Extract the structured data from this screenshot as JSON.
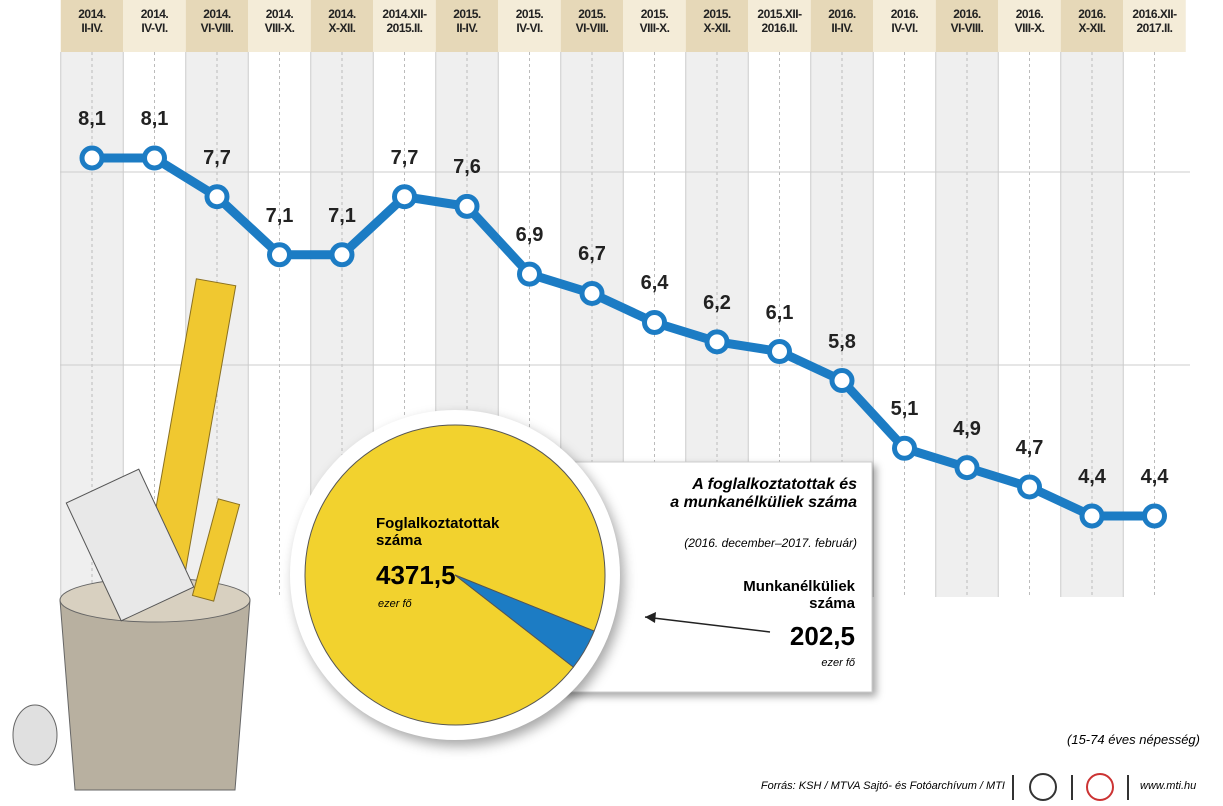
{
  "chart_data": [
    {
      "type": "line",
      "categories": [
        "2014.\nII-IV.",
        "2014.\nIV-VI.",
        "2014.\nVI-VIII.",
        "2014.\nVIII-X.",
        "2014.\nX-XII.",
        "2014.XII-\n2015.II.",
        "2015.\nII-IV.",
        "2015.\nIV-VI.",
        "2015.\nVI-VIII.",
        "2015.\nVIII-X.",
        "2015.\nX-XII.",
        "2015.XII-\n2016.II.",
        "2016.\nII-IV.",
        "2016.\nIV-VI.",
        "2016.\nVI-VIII.",
        "2016.\nVIII-X.",
        "2016.\nX-XII.",
        "2016.XII-\n2017.II."
      ],
      "values": [
        8.1,
        8.1,
        7.7,
        7.1,
        7.1,
        7.7,
        7.6,
        6.9,
        6.7,
        6.4,
        6.2,
        6.1,
        5.8,
        5.1,
        4.9,
        4.7,
        4.4,
        4.4
      ],
      "value_labels": [
        "8,1",
        "8,1",
        "7,7",
        "7,1",
        "7,1",
        "7,7",
        "7,6",
        "6,9",
        "6,7",
        "6,4",
        "6,2",
        "6,1",
        "5,8",
        "5,1",
        "4,9",
        "4,7",
        "4,4",
        "4,4"
      ],
      "color": "#1c7cc4",
      "note": "(15-74 éves népesség)"
    },
    {
      "type": "pie",
      "title": "A foglalkoztatottak és\na munkanélküliek száma",
      "subtitle": "(2016. december–2017. február)",
      "unit": "ezer fő",
      "series": [
        {
          "name": "Foglalkoztatottak\nszáma",
          "color": "#f2d22e",
          "values": [
            4371.5
          ],
          "value_labels": [
            "4371,5"
          ]
        },
        {
          "name": "Munkanélküliek\nszáma",
          "color": "#1c7cc4",
          "values": [
            202.5
          ],
          "value_labels": [
            "202,5"
          ]
        }
      ]
    },
    {
      "type": "source",
      "title": "Forrás: KSH / MTVA Sajtó- és Fotóarchívum / MTI",
      "subtitle": "www.mti.hu"
    }
  ]
}
